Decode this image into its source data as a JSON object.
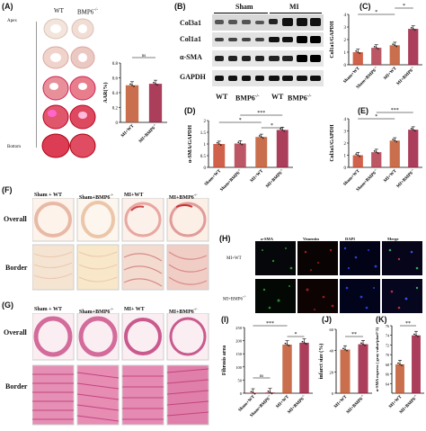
{
  "panel_labels": {
    "A": "(A)",
    "B": "(B)",
    "C": "(C)",
    "D": "(D)",
    "E": "(E)",
    "F": "(F)",
    "G": "(G)",
    "H": "(H)",
    "I": "(I)",
    "J": "(J)",
    "K": "(K)"
  },
  "a": {
    "col_wt": "WT",
    "col_ko": "BMP6",
    "sup": "-/-",
    "apex": "Apex",
    "bottom": "Bottom"
  },
  "b": {
    "group_sham": "Sham",
    "group_mi": "MI",
    "bands": [
      "Col3a1",
      "Col1a1",
      "α-SMA",
      "GAPDH"
    ],
    "lanes": [
      "WT",
      "BMP6",
      "WT",
      "BMP6"
    ]
  },
  "f": {
    "cols": [
      "Sham + WT",
      "Sham+BMP6",
      "MI+WT",
      "MI+BMP6"
    ],
    "rows": [
      "Overall",
      "Border"
    ]
  },
  "g": {
    "cols": [
      "Sham + WT",
      "Sham+BMP6",
      "MI+ WT",
      "MI+BMP6"
    ],
    "rows": [
      "Overall",
      "Border"
    ]
  },
  "h": {
    "cols": [
      "α-SMA",
      "Vimentin",
      "DAPI",
      "Merge"
    ],
    "rows": [
      "MI+WT",
      "MI+BMP6"
    ]
  },
  "sig": {
    "ns": "ns",
    "s1": "*",
    "s2": "**",
    "s3": "***"
  },
  "colors": {
    "wt": "#c0562e",
    "ko": "#9c1c3e",
    "sham_wt": "#c8462c",
    "sham_ko": "#b03a4a",
    "mi_wt": "#2e7d3a",
    "mi_ko": "#6d2f8b"
  },
  "chart_data": [
    {
      "id": "A",
      "type": "bar",
      "ylabel": "AAR(%)",
      "categories": [
        "MI+WT",
        "MI+BMP6"
      ],
      "values": [
        0.5,
        0.52
      ],
      "ylim": [
        0,
        0.8
      ],
      "ticks": [
        0,
        0.2,
        0.4,
        0.6,
        0.8
      ]
    },
    {
      "id": "C",
      "type": "bar",
      "ylabel": "Col1a1/GAPDH",
      "categories": [
        "Sham+WT",
        "Sham+BMP6",
        "MI+WT",
        "MI+BMP6"
      ],
      "values": [
        1.0,
        1.35,
        1.55,
        2.85
      ],
      "ylim": [
        0,
        4
      ],
      "ticks": [
        0,
        1,
        2,
        3,
        4
      ]
    },
    {
      "id": "D",
      "type": "bar",
      "ylabel": "α-SMA/GAPDH",
      "categories": [
        "Sham+WT",
        "Sham+BMP6",
        "MI+WT",
        "MI+BMP6"
      ],
      "values": [
        1.0,
        1.02,
        1.3,
        1.6
      ],
      "ylim": [
        0,
        2
      ],
      "ticks": [
        0,
        0.5,
        1.0,
        1.5,
        2.0
      ]
    },
    {
      "id": "E",
      "type": "bar",
      "ylabel": "Col3a1/GAPDH",
      "categories": [
        "Sham+WT",
        "Sham+BMP6",
        "MI+WT",
        "MI+BMP6"
      ],
      "values": [
        1.0,
        1.25,
        2.2,
        3.1
      ],
      "ylim": [
        0,
        4
      ],
      "ticks": [
        0,
        1,
        2,
        3,
        4
      ]
    },
    {
      "id": "I",
      "type": "bar",
      "ylabel": "Fibrosis area",
      "categories": [
        "Sham+WT",
        "Sham+BMP6",
        "MI+WT",
        "MI+BMP6"
      ],
      "values": [
        2,
        3,
        185,
        192
      ],
      "ylim": [
        0,
        250
      ],
      "ticks": [
        0,
        50,
        100,
        150,
        200,
        250
      ]
    },
    {
      "id": "J",
      "type": "bar",
      "ylabel": "infarct size (%)",
      "categories": [
        "MI+WT",
        "MI+BMP6"
      ],
      "values": [
        41,
        46
      ],
      "ylim": [
        0,
        60
      ],
      "ticks": [
        0,
        20,
        40,
        60
      ]
    },
    {
      "id": "K",
      "type": "bar",
      "ylabel": "α-SMA express ( gray value/pixel^2)",
      "categories": [
        "MI+WT",
        "MI+BMP6"
      ],
      "values": [
        68,
        74
      ],
      "ylim": [
        62,
        76
      ],
      "ticks": [
        64,
        66,
        68,
        70,
        72,
        74,
        76
      ]
    }
  ]
}
